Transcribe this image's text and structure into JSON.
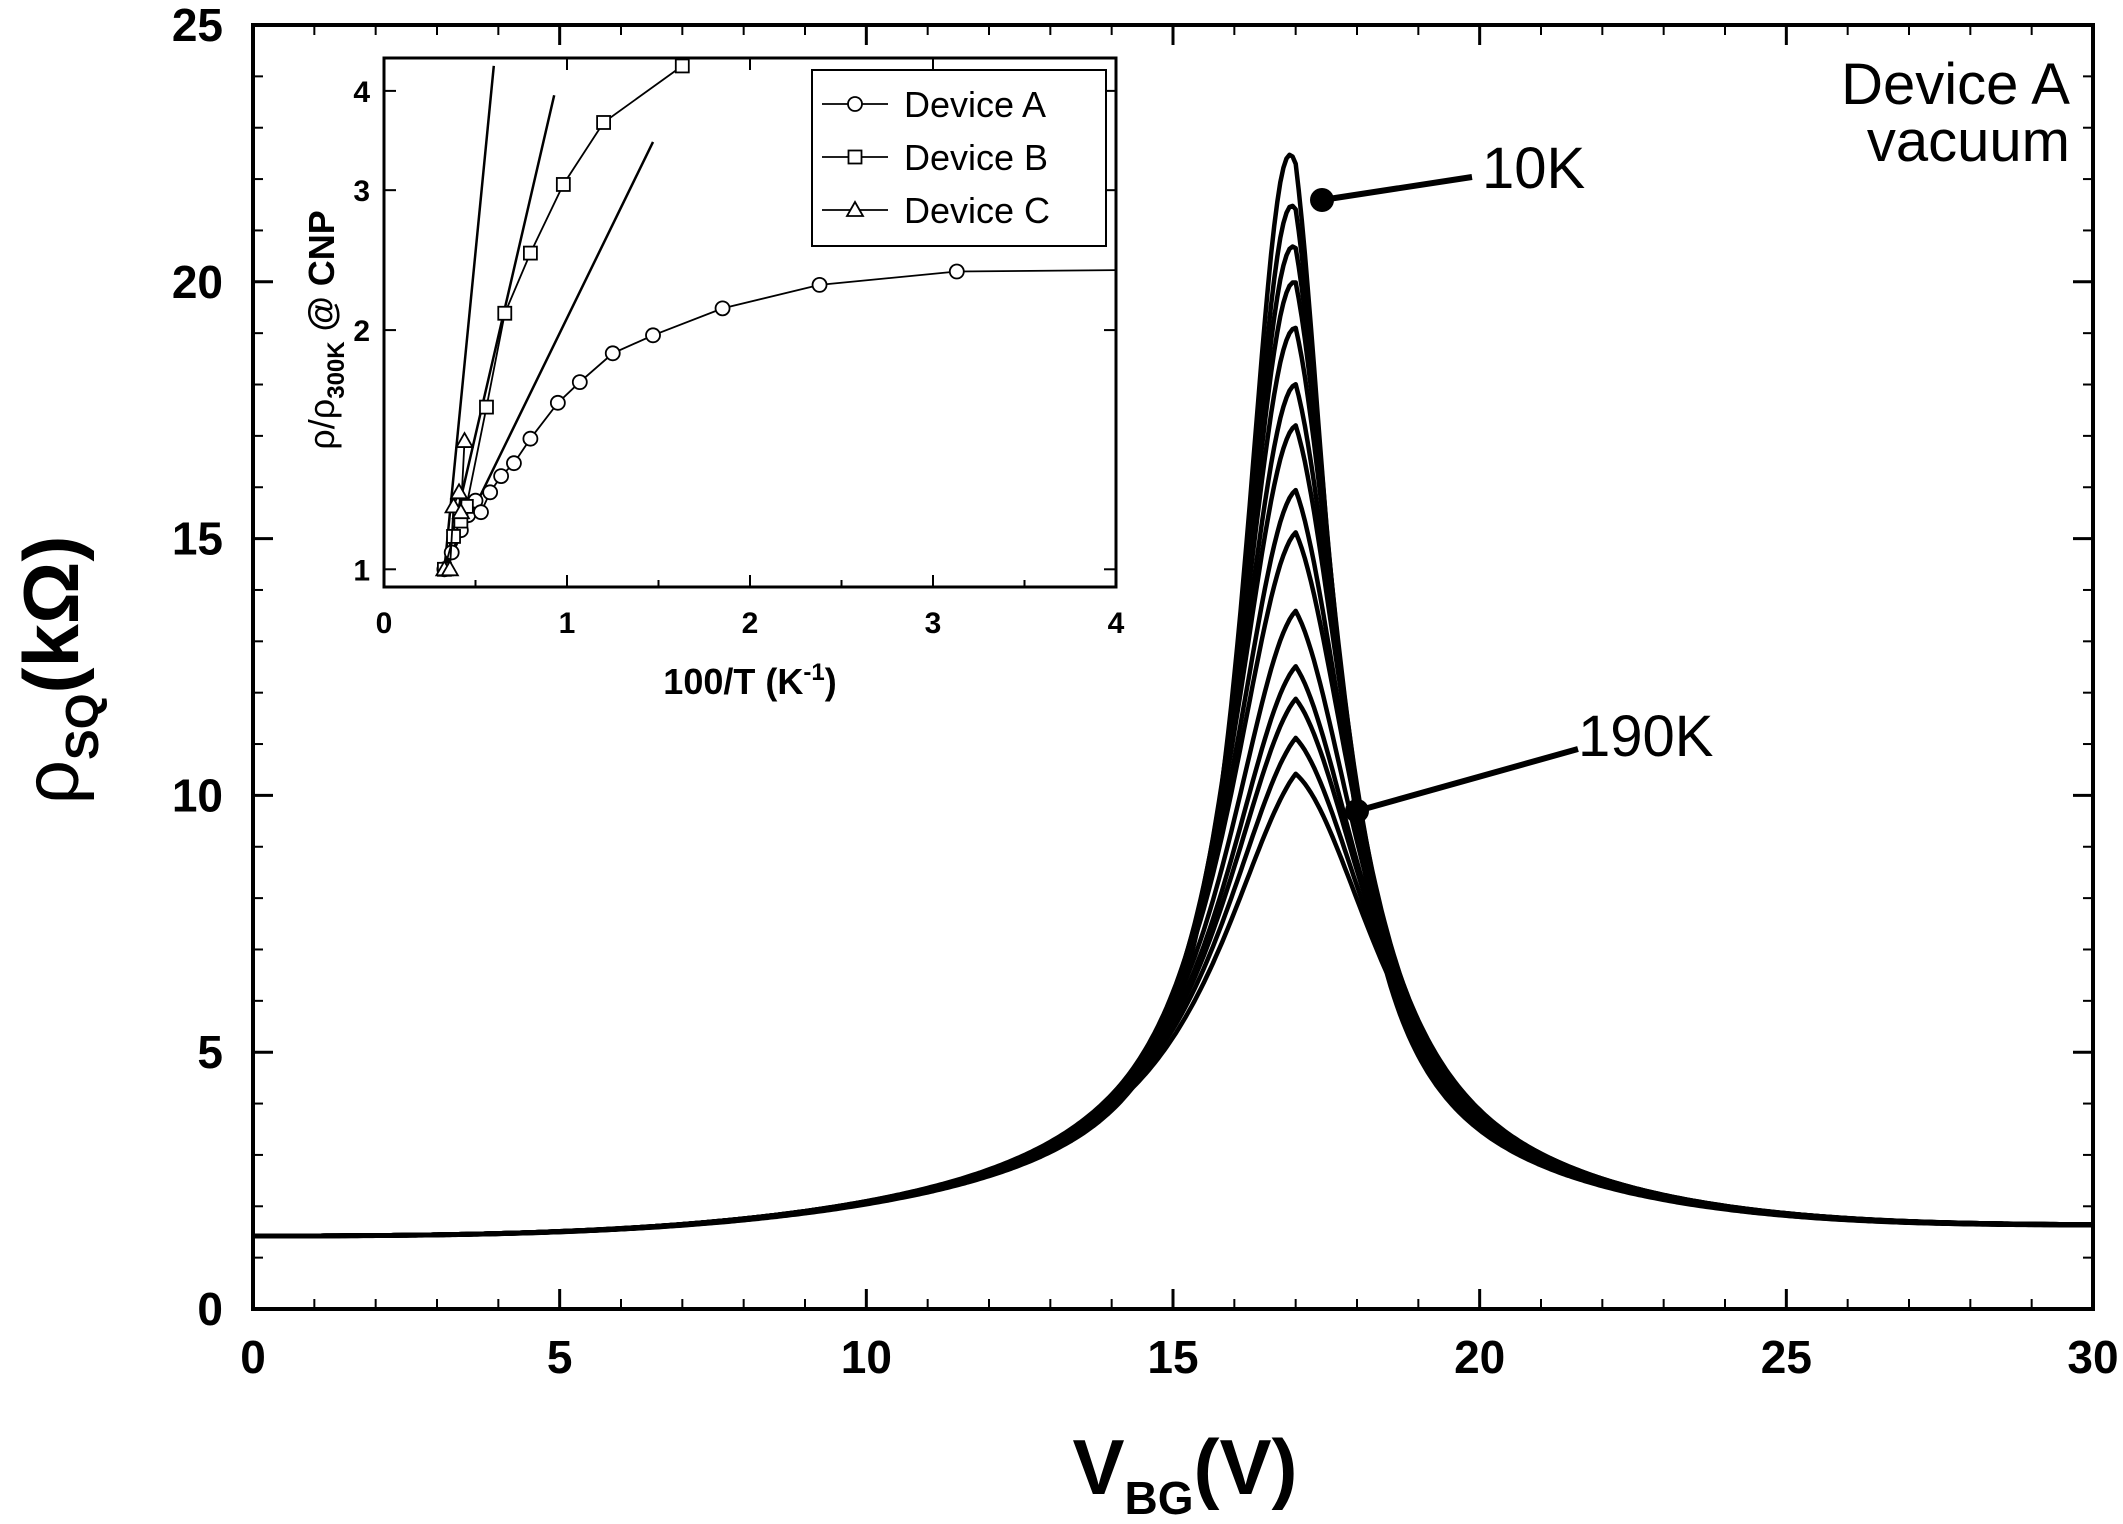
{
  "chart_data": [
    {
      "type": "line",
      "title": "",
      "xlabel": "V",
      "xlabel_sub": "BG",
      "xlabel_unit": "(V)",
      "ylabel": "ρ",
      "ylabel_sub": "SQ",
      "ylabel_unit": "(kΩ)",
      "xlim": [
        0,
        30
      ],
      "ylim": [
        0,
        25
      ],
      "x_ticks": [
        0,
        5,
        10,
        15,
        20,
        25,
        30
      ],
      "y_ticks": [
        0,
        5,
        10,
        15,
        20,
        25
      ],
      "x_tick_labels": [
        "0",
        "5",
        "10",
        "15",
        "20",
        "25",
        "30"
      ],
      "y_tick_labels": [
        "0",
        "5",
        "10",
        "15",
        "20",
        "25"
      ],
      "annotation_device": "Device A",
      "annotation_env": "vacuum",
      "labels": {
        "low_T": "10K",
        "high_T": "190K"
      },
      "peak_position_V": [
        16.85,
        16.87,
        16.88,
        16.89,
        16.9,
        16.91,
        16.92,
        16.93,
        16.95,
        16.97,
        16.99,
        17.02,
        17.05,
        17.1
      ],
      "peak_values_kohm": [
        22.4,
        21.4,
        20.6,
        19.9,
        19.0,
        17.9,
        17.1,
        15.85,
        15.05,
        13.55,
        12.5,
        11.85,
        11.05,
        10.3
      ],
      "series_note": "Curves from 10K (top) to 190K (bottom); resistivity ~1.4 kΩ at 0 V and ~1.6 kΩ at 30 V"
    },
    {
      "type": "scatter",
      "role": "inset",
      "ylabel": "ρ/ρ",
      "ylabel_sub": "300K",
      "ylabel_suffix": " @ CNP",
      "xlabel": "100/T (K",
      "xlabel_sup": "-1",
      "xlabel_suffix": ")",
      "xlim": [
        0,
        4
      ],
      "ylim": [
        0.95,
        4.4
      ],
      "y_scale": "log",
      "x_ticks": [
        0,
        1,
        2,
        3,
        4
      ],
      "y_ticks": [
        1,
        2,
        3,
        4
      ],
      "x_tick_labels": [
        "0",
        "1",
        "2",
        "3",
        "4"
      ],
      "y_tick_labels": [
        "1",
        "2",
        "3",
        "4"
      ],
      "legend_position": "top-right",
      "series": [
        {
          "name": "Device A",
          "marker": "circle",
          "x": [
            0.33,
            0.37,
            0.42,
            0.46,
            0.5,
            0.53,
            0.58,
            0.64,
            0.71,
            0.8,
            0.95,
            1.07,
            1.25,
            1.47,
            1.85,
            2.38,
            3.13,
            4.0
          ],
          "y": [
            1.0,
            1.05,
            1.12,
            1.17,
            1.22,
            1.18,
            1.25,
            1.31,
            1.36,
            1.46,
            1.62,
            1.72,
            1.87,
            1.97,
            2.13,
            2.28,
            2.37,
            2.38
          ]
        },
        {
          "name": "Device B",
          "marker": "square",
          "x": [
            0.33,
            0.38,
            0.42,
            0.45,
            0.56,
            0.66,
            0.8,
            0.98,
            1.2,
            1.63
          ],
          "y": [
            1.0,
            1.1,
            1.15,
            1.2,
            1.6,
            2.1,
            2.5,
            3.05,
            3.65,
            4.3
          ]
        },
        {
          "name": "Device C",
          "marker": "triangle",
          "x": [
            0.33,
            0.36,
            0.38,
            0.41,
            0.42,
            0.44
          ],
          "y": [
            1.0,
            1.0,
            1.2,
            1.25,
            1.18,
            1.45
          ]
        }
      ],
      "fit_lines": [
        {
          "x": [
            0.33,
            0.6
          ],
          "y": [
            1.0,
            4.3
          ]
        },
        {
          "x": [
            0.33,
            0.93
          ],
          "y": [
            1.0,
            3.95
          ]
        },
        {
          "x": [
            0.33,
            1.47
          ],
          "y": [
            1.0,
            3.45
          ]
        }
      ]
    }
  ]
}
